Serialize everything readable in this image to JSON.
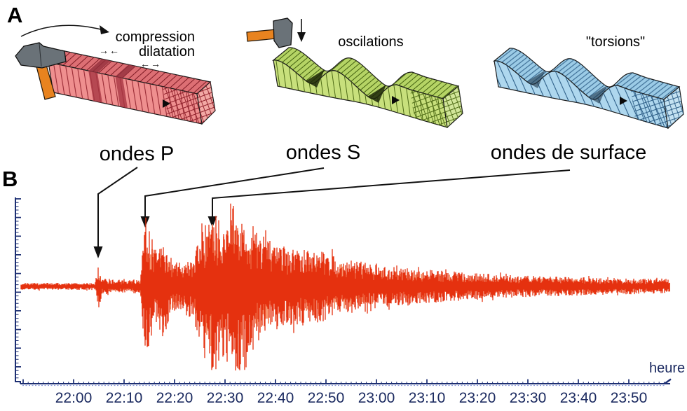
{
  "panelA": {
    "label": "A",
    "blocks": [
      {
        "caption_lines": [
          "compression",
          "dilatation"
        ],
        "arrow_pairs": [
          "→←",
          "←→"
        ],
        "body_color": "#ef8f8f",
        "icons": [
          "hammer-icon",
          "curved-rotation-arrow-icon",
          "direction-marker-icon"
        ]
      },
      {
        "caption": "oscilations",
        "body_color": "#c8e07c",
        "icons": [
          "hammer-icon",
          "impact-down-arrow-icon",
          "direction-marker-icon"
        ]
      },
      {
        "caption": "\"torsions\"",
        "body_color": "#aed7ee",
        "icons": [
          "direction-marker-icon"
        ]
      }
    ]
  },
  "panelB": {
    "label": "B",
    "annotations": [
      {
        "label": "ondes P",
        "arrival_time": "22:05"
      },
      {
        "label": "ondes S",
        "arrival_time": "22:14"
      },
      {
        "label": "ondes de surface",
        "arrival_time": "22:27"
      }
    ]
  },
  "chart_data": {
    "type": "line",
    "title": "",
    "xlabel": "heure",
    "ylabel": "",
    "x_tick_labels": [
      "22:00",
      "22:10",
      "22:20",
      "22:30",
      "22:40",
      "22:50",
      "23:00",
      "23:10",
      "23:20",
      "23:30",
      "23:40",
      "23:50"
    ],
    "x_range": [
      "21:50",
      "23:58"
    ],
    "grid": false,
    "legend": "none",
    "trace_color": "#e5310f",
    "trace_secondary_color": "#f58a60",
    "axis_color": "#1d2f73",
    "tick_label_color": "#1b2a60",
    "arrivals_minutes_after_2200": {
      "P": 5.0,
      "S": 14.2,
      "surface": 27.5
    },
    "envelope_rel": [
      [
        -10.4,
        0.042
      ],
      [
        4.2,
        0.042
      ],
      [
        4.6,
        0.18
      ],
      [
        5,
        0.26
      ],
      [
        5.6,
        0.1
      ],
      [
        7.6,
        0.09
      ],
      [
        9.7,
        0.075
      ],
      [
        13.2,
        0.085
      ],
      [
        13.7,
        0.5
      ],
      [
        14.2,
        0.85
      ],
      [
        14.9,
        0.72
      ],
      [
        16,
        0.5
      ],
      [
        17.8,
        0.62
      ],
      [
        19,
        0.38
      ],
      [
        20.3,
        0.3
      ],
      [
        21.8,
        0.28
      ],
      [
        22.6,
        0.4
      ],
      [
        23.6,
        0.37
      ],
      [
        25.4,
        0.62
      ],
      [
        26.4,
        0.87
      ],
      [
        27.5,
        0.96
      ],
      [
        28.7,
        0.83
      ],
      [
        30.1,
        0.81
      ],
      [
        31.5,
        1.0
      ],
      [
        32.9,
        0.9
      ],
      [
        34.3,
        0.71
      ],
      [
        36.1,
        0.67
      ],
      [
        38.2,
        0.58
      ],
      [
        41,
        0.52
      ],
      [
        43.7,
        0.47
      ],
      [
        47.2,
        0.46
      ],
      [
        50.7,
        0.38
      ],
      [
        54.9,
        0.32
      ],
      [
        59,
        0.27
      ],
      [
        64.6,
        0.23
      ],
      [
        70.1,
        0.2
      ],
      [
        77.1,
        0.17
      ],
      [
        84,
        0.14
      ],
      [
        91,
        0.125
      ],
      [
        99.3,
        0.11
      ],
      [
        107.6,
        0.1
      ],
      [
        118.1,
        0.085
      ]
    ]
  }
}
